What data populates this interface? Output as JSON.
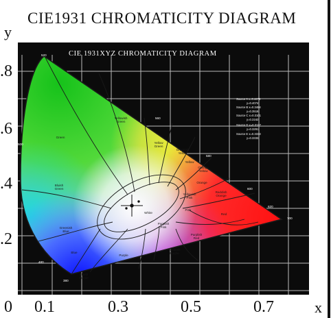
{
  "title": "CIE1931 CHROMATICITY DIAGRAM",
  "inner_title": "CIE 1931XYZ CHROMATICITY DIAGRAM",
  "x_axis": {
    "name": "x",
    "ticks": [
      "0",
      "0.1",
      "0.3",
      "0.5",
      "0.7"
    ]
  },
  "y_axis": {
    "name": "y",
    "ticks": [
      ".8",
      ".6",
      ".4",
      ".2"
    ]
  },
  "region_labels": [
    {
      "key": "green",
      "lines": [
        "Green"
      ]
    },
    {
      "key": "yellowish-green",
      "lines": [
        "Yellowish",
        "Green"
      ]
    },
    {
      "key": "yellow-green",
      "lines": [
        "Yellow",
        "Green"
      ]
    },
    {
      "key": "greenish-yellow",
      "lines": [
        "Greenish",
        "Yellow"
      ]
    },
    {
      "key": "yellow",
      "lines": [
        "Yellow"
      ]
    },
    {
      "key": "orange-yellow",
      "lines": [
        "Orange",
        "Yellow"
      ]
    },
    {
      "key": "orange",
      "lines": [
        "Orange"
      ]
    },
    {
      "key": "reddish-orange",
      "lines": [
        "Reddish",
        "Orange"
      ]
    },
    {
      "key": "yellowish-pink",
      "lines": [
        "Yellowish",
        "Pink"
      ]
    },
    {
      "key": "pink",
      "lines": [
        "Pink"
      ]
    },
    {
      "key": "red",
      "lines": [
        "Red"
      ]
    },
    {
      "key": "purplish-pink",
      "lines": [
        "Purplish",
        "Pink"
      ]
    },
    {
      "key": "purplish-red",
      "lines": [
        "Purplish",
        "Red"
      ]
    },
    {
      "key": "reddish-purple",
      "lines": [
        "Reddish",
        "Purple"
      ]
    },
    {
      "key": "purple",
      "lines": [
        "Purple"
      ]
    },
    {
      "key": "bluish-purple",
      "lines": [
        "Bluish",
        "Purple"
      ]
    },
    {
      "key": "blue",
      "lines": [
        "Blue"
      ]
    },
    {
      "key": "greenish-blue",
      "lines": [
        "Greenish",
        "Blue"
      ]
    },
    {
      "key": "bluish-green",
      "lines": [
        "Bluish",
        "Green"
      ]
    },
    {
      "key": "white",
      "lines": [
        "White"
      ]
    }
  ],
  "wavelength_labels": [
    "520",
    "480",
    "500",
    "560",
    "580",
    "600",
    "620",
    "700",
    "380"
  ],
  "source_notes": [
    "Source A x=0.4476",
    "y=0.4074",
    "Source B x=0.3484",
    "y=0.3516",
    "Source C x=0.3101",
    "y=0.3162",
    "Source D x=0.3127",
    "y=0.3291",
    "Source E x=0.3333",
    "y=0.3333"
  ],
  "colors": {
    "outer_background": "#ffffff",
    "plot_background": "#0b0b0b",
    "grid": "#bdbdbd",
    "boundary": "#1a1a1a",
    "label": "#1a1a1a"
  }
}
